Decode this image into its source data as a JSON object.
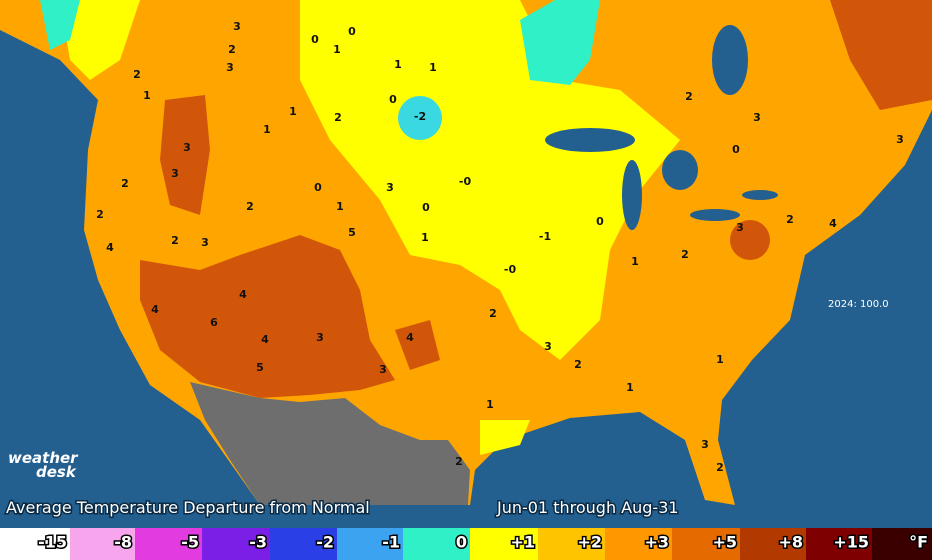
{
  "branding": {
    "logo_line1": "weather",
    "logo_line2": "desk"
  },
  "title": "Average Temperature Departure from Normal",
  "period": "Jun-01 through Aug-31",
  "annotation": "2024: 100.0",
  "legend": [
    {
      "label": "-15",
      "color": "#ffffff"
    },
    {
      "label": "-8",
      "color": "#f7a6ee"
    },
    {
      "label": "-5",
      "color": "#e23ce0"
    },
    {
      "label": "-3",
      "color": "#7b1fe6"
    },
    {
      "label": "-2",
      "color": "#2b3fe6"
    },
    {
      "label": "-1",
      "color": "#3ba3f0"
    },
    {
      "label": "0",
      "color": "#30f0c8"
    },
    {
      "label": "+1",
      "color": "#ffff00"
    },
    {
      "label": "+2",
      "color": "#ffc400"
    },
    {
      "label": "+3",
      "color": "#ff9800"
    },
    {
      "label": "+5",
      "color": "#e56a00"
    },
    {
      "label": "+8",
      "color": "#b23a00"
    },
    {
      "label": "+15",
      "color": "#7e0000"
    },
    {
      "label": "°F",
      "color": "#3a0000"
    }
  ],
  "stations": [
    "3",
    "2",
    "3",
    "0",
    "1",
    "0",
    "1",
    "1",
    "2",
    "1",
    "1",
    "1",
    "2",
    "0",
    "-2",
    "3",
    "3",
    "2",
    "2",
    "0",
    "3",
    "2",
    "1",
    "-0",
    "0",
    "5",
    "4",
    "2",
    "3",
    "1",
    "-0",
    "-1",
    "0",
    "1",
    "2",
    "3",
    "4",
    "6",
    "4",
    "5",
    "3",
    "3",
    "4",
    "2",
    "3",
    "2",
    "1",
    "3",
    "2",
    "1",
    "2",
    "1",
    "4",
    "2",
    "3",
    "4",
    "3",
    "2",
    "0"
  ]
}
